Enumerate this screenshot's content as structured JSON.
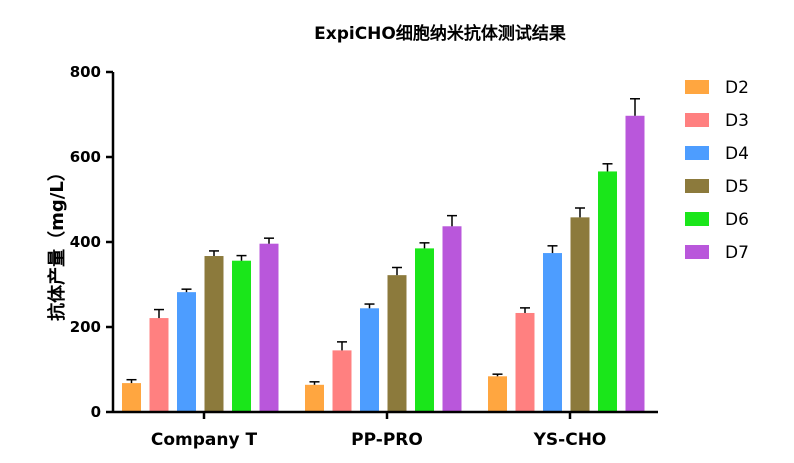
{
  "chart_data": {
    "type": "bar",
    "title": "ExpiCHO细胞纳米抗体测试结果",
    "xlabel": "",
    "ylabel": "抗体产量（mg/L）",
    "ylim": [
      0,
      800
    ],
    "yticks": [
      "0",
      "200",
      "400",
      "600",
      "800"
    ],
    "grid": false,
    "legend_position": "right",
    "categories": [
      "Company T",
      "PP-PRO",
      "YS-CHO"
    ],
    "series": [
      {
        "name": "D2",
        "color": "#FFA640",
        "values": [
          68,
          64,
          84
        ],
        "errors": [
          8,
          7,
          5
        ]
      },
      {
        "name": "D3",
        "color": "#FF8080",
        "values": [
          221,
          145,
          233
        ],
        "errors": [
          20,
          20,
          12
        ]
      },
      {
        "name": "D4",
        "color": "#4D9DFF",
        "values": [
          282,
          244,
          374
        ],
        "errors": [
          7,
          10,
          17
        ]
      },
      {
        "name": "D5",
        "color": "#8C7A3C",
        "values": [
          367,
          322,
          458
        ],
        "errors": [
          12,
          18,
          22
        ]
      },
      {
        "name": "D6",
        "color": "#1AE61A",
        "values": [
          356,
          385,
          566
        ],
        "errors": [
          12,
          13,
          18
        ]
      },
      {
        "name": "D7",
        "color": "#B957DB",
        "values": [
          396,
          437,
          697
        ],
        "errors": [
          13,
          25,
          40
        ]
      }
    ]
  }
}
